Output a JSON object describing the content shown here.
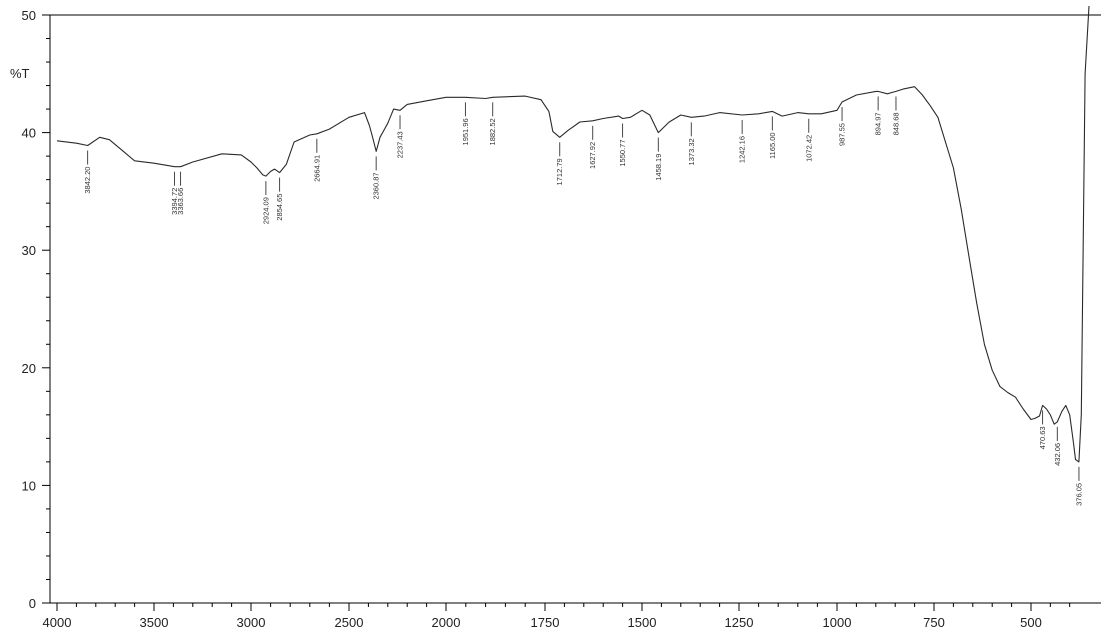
{
  "chart_data": {
    "type": "line",
    "title": "",
    "xlabel": "",
    "ylabel": "%T",
    "xlim": [
      4000,
      350
    ],
    "ylim": [
      0,
      50
    ],
    "x_ticks": [
      4000,
      3500,
      3000,
      2500,
      2000,
      1750,
      1500,
      1250,
      1000,
      750,
      500
    ],
    "x_tick_labels": [
      "4000",
      "3500",
      "3000",
      "2500",
      "2000",
      "1750",
      "1500",
      "1250",
      "1000",
      "750",
      "500"
    ],
    "y_ticks": [
      0,
      10,
      20,
      30,
      40,
      50
    ],
    "y_tick_labels": [
      "0",
      "10",
      "20",
      "30",
      "40",
      "50"
    ],
    "grid": false,
    "series": [
      {
        "x": [
          4000,
          3900,
          3842,
          3780,
          3730,
          3600,
          3500,
          3394,
          3363,
          3300,
          3150,
          3050,
          3000,
          2970,
          2940,
          2924,
          2900,
          2880,
          2854,
          2820,
          2780,
          2700,
          2664,
          2600,
          2500,
          2420,
          2395,
          2380,
          2360,
          2340,
          2300,
          2270,
          2237,
          2200,
          2100,
          2000,
          1951,
          1900,
          1882,
          1800,
          1760,
          1740,
          1730,
          1712,
          1690,
          1660,
          1627,
          1600,
          1560,
          1550,
          1530,
          1500,
          1480,
          1458,
          1430,
          1400,
          1373,
          1340,
          1300,
          1242,
          1200,
          1165,
          1140,
          1100,
          1072,
          1040,
          1000,
          987,
          950,
          900,
          894,
          870,
          848,
          830,
          800,
          780,
          760,
          740,
          700,
          680,
          660,
          640,
          620,
          600,
          580,
          560,
          540,
          520,
          500,
          490,
          478,
          470,
          460,
          450,
          440,
          432,
          420,
          410,
          400,
          390,
          385,
          376,
          370,
          360,
          350
        ],
        "y": [
          39.3,
          39.1,
          38.9,
          39.6,
          39.4,
          37.6,
          37.4,
          37.1,
          37.1,
          37.5,
          38.2,
          38.1,
          37.5,
          37.0,
          36.4,
          36.3,
          36.7,
          36.9,
          36.6,
          37.3,
          39.2,
          39.8,
          39.9,
          40.3,
          41.3,
          41.7,
          40.6,
          39.7,
          38.4,
          39.6,
          40.8,
          42.0,
          41.9,
          42.4,
          42.7,
          43.0,
          43.0,
          42.9,
          43.0,
          43.1,
          42.8,
          41.8,
          40.1,
          39.6,
          40.2,
          40.9,
          41.0,
          41.2,
          41.4,
          41.2,
          41.3,
          41.9,
          41.5,
          40.0,
          40.9,
          41.5,
          41.3,
          41.4,
          41.7,
          41.5,
          41.6,
          41.8,
          41.4,
          41.7,
          41.6,
          41.6,
          41.9,
          42.6,
          43.2,
          43.5,
          43.5,
          43.3,
          43.5,
          43.7,
          43.9,
          43.2,
          42.3,
          41.3,
          37.0,
          33.5,
          29.5,
          25.5,
          22.0,
          19.8,
          18.4,
          17.9,
          17.5,
          16.5,
          15.6,
          15.7,
          15.9,
          16.8,
          16.5,
          16.0,
          15.2,
          15.4,
          16.3,
          16.8,
          16.0,
          13.6,
          12.2,
          12.0,
          16.0,
          45.0,
          51.0
        ]
      }
    ],
    "peak_labels": [
      {
        "x": 3842,
        "label": "3842.20"
      },
      {
        "x": 3394,
        "label": "3394.72"
      },
      {
        "x": 3363,
        "label": "3363.66"
      },
      {
        "x": 2924,
        "label": "2924.09"
      },
      {
        "x": 2854,
        "label": "2854.65"
      },
      {
        "x": 2664,
        "label": "2664.91"
      },
      {
        "x": 2360,
        "label": "2360.87"
      },
      {
        "x": 2237,
        "label": "2237.43"
      },
      {
        "x": 1951,
        "label": "1951.96"
      },
      {
        "x": 1882,
        "label": "1882.52"
      },
      {
        "x": 1712,
        "label": "1712.79"
      },
      {
        "x": 1627,
        "label": "1627.92"
      },
      {
        "x": 1550,
        "label": "1550.77"
      },
      {
        "x": 1458,
        "label": "1458.19"
      },
      {
        "x": 1373,
        "label": "1373.32"
      },
      {
        "x": 1242,
        "label": "1242.16"
      },
      {
        "x": 1165,
        "label": "1165.00"
      },
      {
        "x": 1072,
        "label": "1072.42"
      },
      {
        "x": 987,
        "label": "987.55"
      },
      {
        "x": 894,
        "label": "894.97"
      },
      {
        "x": 848,
        "label": "848.68"
      },
      {
        "x": 470,
        "label": "470.63"
      },
      {
        "x": 432,
        "label": "432.06"
      },
      {
        "x": 376,
        "label": "376.05"
      }
    ]
  }
}
